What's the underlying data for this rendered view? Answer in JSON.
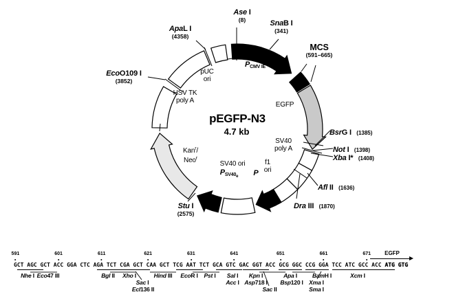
{
  "circle": {
    "name": "pEGFP-N3",
    "size": "4.7 kb",
    "inner_labels": {
      "cmv_p": "P",
      "cmv_sub": "CMV IE",
      "egfp": "EGFP",
      "sv40pa_l1": "SV40",
      "sv40pa_l2": "poly A",
      "f1_l1": "f1",
      "f1_l2": "ori",
      "f1_p": "P",
      "sv40ori": "SV40 ori",
      "psv40_p": "P",
      "psv40_sub": "SV40",
      "psv40_sube": "e",
      "kan_main": "Kan",
      "kan_sup": "r",
      "kan_slash": "/",
      "neo_main": "Neo",
      "neo_sup": "r",
      "hsv_l1": "HSV TK",
      "hsv_l2": "poly A",
      "puc_l1": "pUC",
      "puc_l2": "ori"
    },
    "sites": [
      {
        "it": "Ase",
        "rest": " I",
        "pos": "(8)"
      },
      {
        "it": "Sna",
        "rest": "B I",
        "pos": "(341)"
      },
      {
        "it": "",
        "rest": "MCS",
        "pos": "(591–665)"
      },
      {
        "it": "Bsr",
        "rest": "G I",
        "pos": "(1385)"
      },
      {
        "it": "Not",
        "rest": " I",
        "pos": "(1398)"
      },
      {
        "it": "Xba",
        "rest": " I*",
        "pos": "(1408)"
      },
      {
        "it": "Afl",
        "rest": " II",
        "pos": "(1636)"
      },
      {
        "it": "Dra",
        "rest": " III",
        "pos": "(1870)"
      },
      {
        "it": "Stu",
        "rest": " I",
        "pos": "(2575)"
      },
      {
        "it": "Eco",
        "rest": "O109 I",
        "pos": "(3852)"
      },
      {
        "it": "Apa",
        "rest": "L I",
        "pos": "(4358)"
      }
    ]
  },
  "mcs": {
    "ruler": [
      "591",
      "601",
      "611",
      "621",
      "631",
      "641",
      "651",
      "661",
      "671"
    ],
    "sequence_main": "GCT AGC GCT ACC GGA CTC AGA TCT CGA GCT CAA GCT TCG AAT TCT GCA GTC GAC GGT ACC GCG GGC CCG GGA TCC ATC GCC ACC ",
    "start_codon": "ATG GTG",
    "egfp_label": "EGFP",
    "enzymes": [
      {
        "it": "Nhe",
        "rest": " I"
      },
      {
        "it": "Eco",
        "rest": "47 III"
      },
      {
        "it": "Bgl",
        "rest": " II"
      },
      {
        "it": "Xho",
        "rest": " I"
      },
      {
        "it": "Sac",
        "rest": " I"
      },
      {
        "it": "Ecl",
        "rest": "136 II"
      },
      {
        "it": "Hind",
        "rest": " III"
      },
      {
        "it": "Eco",
        "rest": "R I"
      },
      {
        "it": "Pst",
        "rest": " I"
      },
      {
        "it": "Sal",
        "rest": " I"
      },
      {
        "it": "Acc",
        "rest": " I"
      },
      {
        "it": "Kpn",
        "rest": " I"
      },
      {
        "it": "Asp",
        "rest": "718 I"
      },
      {
        "it": "Sac",
        "rest": " II"
      },
      {
        "it": "Apa",
        "rest": " I"
      },
      {
        "it": "Bsp",
        "rest": "120 I"
      },
      {
        "it": "Xma",
        "rest": " I"
      },
      {
        "it": "Sma",
        "rest": " I"
      },
      {
        "it": "Bam",
        "rest": "H I"
      },
      {
        "it": "Xcm",
        "rest": " I"
      }
    ]
  }
}
